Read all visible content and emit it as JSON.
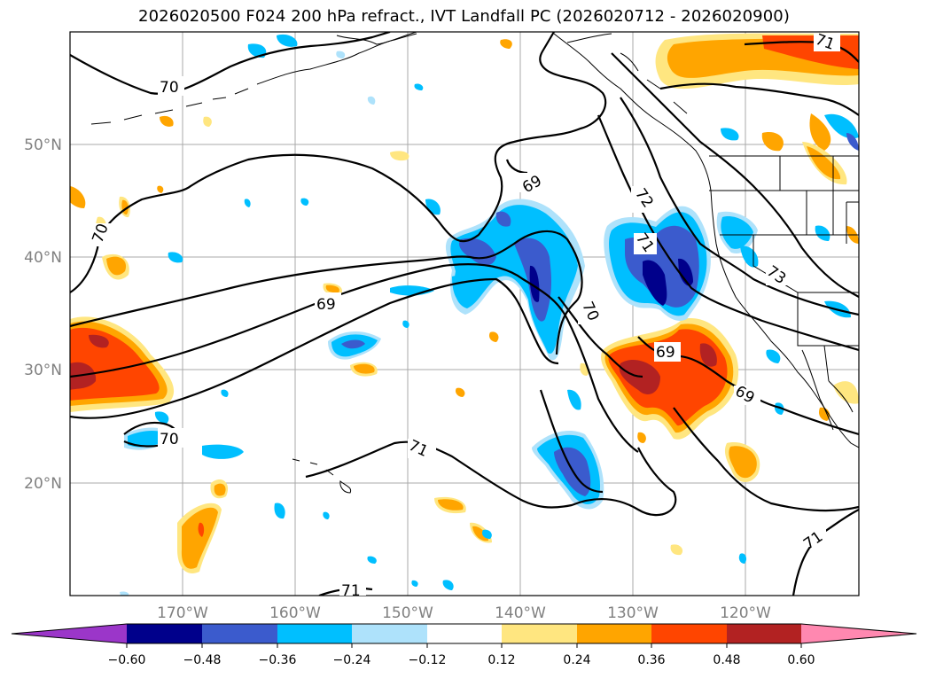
{
  "title": "2026020500 F024 200 hPa refract., IVT Landfall PC (2026020712 - 2026020900)",
  "lat_labels": [
    "50°N",
    "40°N",
    "30°N",
    "20°N"
  ],
  "lon_labels": [
    "170°W",
    "160°W",
    "150°W",
    "140°W",
    "130°W",
    "120°W"
  ],
  "contour_labels": [
    "70",
    "69",
    "72",
    "71",
    "73",
    "70",
    "69",
    "69",
    "70",
    "71",
    "71",
    "71",
    "70",
    "71"
  ],
  "colorbar": {
    "ticks": [
      "−0.60",
      "−0.48",
      "−0.36",
      "−0.24",
      "−0.12",
      "0.12",
      "0.24",
      "0.36",
      "0.48",
      "0.60"
    ],
    "colors": {
      "under": "#9b36c9",
      "c1": "#00008b",
      "c2": "#3b5bcd",
      "c3": "#00bfff",
      "c4": "#aee2fb",
      "c5": "#ffffff",
      "c6": "#ffe680",
      "c7": "#ffa500",
      "c8": "#ff4500",
      "c9": "#b22222",
      "over": "#ff88b0"
    }
  }
}
